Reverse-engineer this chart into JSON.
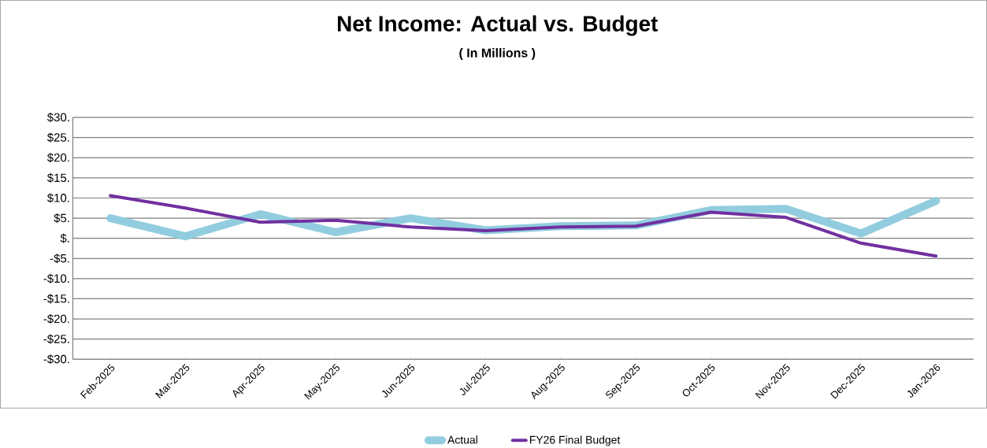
{
  "chart_data": {
    "type": "line",
    "title": "Net Income: Actual vs. Budget",
    "subtitle": "( In Millions )",
    "categories": [
      "Feb-2025",
      "Mar-2025",
      "Apr-2025",
      "May-2025",
      "Jun-2025",
      "Jul-2025",
      "Aug-2025",
      "Sep-2025",
      "Oct-2025",
      "Nov-2025",
      "Dec-2025",
      "Jan-2026"
    ],
    "series": [
      {
        "name": "Actual",
        "color": "#92cddf",
        "values": [
          5.0,
          0.5,
          6.0,
          1.5,
          5.0,
          2.0,
          3.0,
          3.2,
          7.0,
          7.3,
          1.2,
          9.3
        ]
      },
      {
        "name": "FY26 Final Budget",
        "color": "#7030a0",
        "values": [
          10.6,
          7.5,
          4.0,
          4.5,
          2.8,
          1.9,
          2.8,
          3.0,
          6.5,
          5.2,
          -1.2,
          -4.4
        ]
      }
    ],
    "ylim": [
      -30,
      30
    ],
    "yticks": [
      {
        "value": 30,
        "label": "$30."
      },
      {
        "value": 25,
        "label": "$25."
      },
      {
        "value": 20,
        "label": "$20."
      },
      {
        "value": 15,
        "label": "$15."
      },
      {
        "value": 10,
        "label": "$10."
      },
      {
        "value": 5,
        "label": "$5."
      },
      {
        "value": 0,
        "label": "$."
      },
      {
        "value": -5,
        "label": "-$5."
      },
      {
        "value": -10,
        "label": "-$10."
      },
      {
        "value": -15,
        "label": "-$15."
      },
      {
        "value": -20,
        "label": "-$20."
      },
      {
        "value": -25,
        "label": "-$25."
      },
      {
        "value": -30,
        "label": "-$30."
      }
    ],
    "grid": "y",
    "legend": "bottom",
    "marker": "none",
    "line_style": "solid"
  }
}
